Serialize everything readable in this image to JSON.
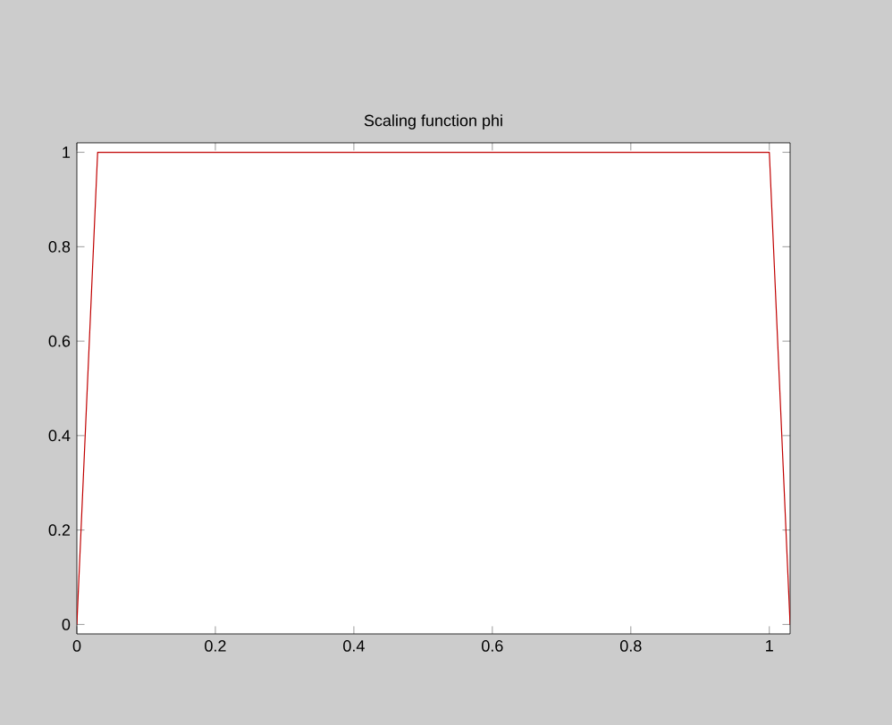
{
  "chart_data": {
    "type": "line",
    "title": "Scaling function phi",
    "x": [
      0,
      0.03,
      1,
      1.03
    ],
    "series": [
      {
        "color": "#c00000",
        "values": [
          0,
          1,
          1,
          0
        ]
      }
    ],
    "xlim": [
      0,
      1.03
    ],
    "ylim": [
      -0.02,
      1.02
    ],
    "xticks": [
      0,
      0.2,
      0.4,
      0.6,
      0.8,
      1
    ],
    "yticks": [
      0,
      0.2,
      0.4,
      0.6,
      0.8,
      1
    ],
    "grid": false,
    "marker": "none",
    "line_style": "solid"
  }
}
